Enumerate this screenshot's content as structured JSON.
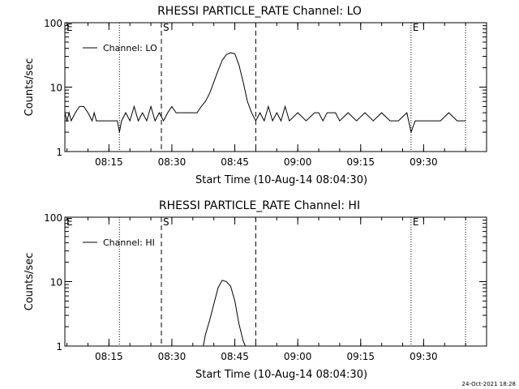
{
  "datestamp": "24-Oct-2021 18:28",
  "chart_data": [
    {
      "type": "line",
      "title": "RHESSI PARTICLE_RATE Channel: LO",
      "xlabel": "Start Time (10-Aug-14 08:04:30)",
      "ylabel": "Counts/sec",
      "yscale": "log",
      "ylim": [
        1,
        100
      ],
      "xlim": [
        "08:04:30",
        "09:45:00"
      ],
      "x_ticks": [
        "08:15",
        "08:30",
        "08:45",
        "09:00",
        "09:15",
        "09:30"
      ],
      "y_ticks": [
        "1",
        "10",
        "100"
      ],
      "legend": {
        "label": "Channel: LO",
        "placement": "top-left"
      },
      "grid": false,
      "markers": [
        {
          "time": "08:04:30",
          "style": "dotted",
          "label": "E"
        },
        {
          "time": "08:17:30",
          "style": "dotted",
          "label": ""
        },
        {
          "time": "08:27:30",
          "style": "dashed",
          "label": "S"
        },
        {
          "time": "08:50:00",
          "style": "dashed",
          "label": ""
        },
        {
          "time": "09:27:00",
          "style": "dotted",
          "label": "E"
        },
        {
          "time": "09:40:00",
          "style": "dotted",
          "label": ""
        }
      ],
      "series": [
        {
          "x": [
            "08:04:30",
            "08:05:00",
            "08:05:30",
            "08:06:00",
            "08:07:00",
            "08:08:00",
            "08:09:00",
            "08:10:00",
            "08:11:00",
            "08:11:30",
            "08:12:00",
            "08:13:00",
            "08:14:00",
            "08:15:00",
            "08:16:00",
            "08:17:00",
            "08:17:30",
            "08:18:00",
            "08:19:00",
            "08:20:00",
            "08:21:00",
            "08:22:00",
            "08:23:00",
            "08:24:00",
            "08:25:00",
            "08:26:00",
            "08:27:00",
            "08:28:00",
            "08:29:00",
            "08:30:00",
            "08:31:00",
            "08:32:00",
            "08:33:00",
            "08:34:00",
            "08:35:00",
            "08:36:00",
            "08:37:00",
            "08:38:00",
            "08:39:00",
            "08:40:00",
            "08:41:00",
            "08:42:00",
            "08:43:00",
            "08:44:00",
            "08:45:00",
            "08:46:00",
            "08:47:00",
            "08:48:00",
            "08:49:00",
            "08:50:00",
            "08:51:00",
            "08:52:00",
            "08:53:00",
            "08:54:00",
            "08:55:00",
            "08:56:00",
            "08:57:00",
            "08:58:00",
            "09:00:00",
            "09:02:00",
            "09:04:00",
            "09:05:00",
            "09:06:00",
            "09:07:00",
            "09:08:00",
            "09:09:00",
            "09:10:00",
            "09:12:00",
            "09:14:00",
            "09:16:00",
            "09:18:00",
            "09:20:00",
            "09:22:00",
            "09:24:00",
            "09:26:00",
            "09:27:00",
            "09:28:00",
            "09:30:00",
            "09:32:00",
            "09:34:00",
            "09:36:00",
            "09:38:00",
            "09:40:00"
          ],
          "values": [
            4,
            3,
            4,
            3,
            4,
            5,
            5,
            4,
            3,
            4,
            3,
            3,
            3,
            3,
            3,
            3,
            2,
            3,
            4,
            3,
            5,
            3,
            4,
            3,
            5,
            3,
            4,
            3,
            4,
            5,
            4,
            4,
            4,
            4,
            4,
            4,
            5,
            6,
            8,
            12,
            18,
            26,
            32,
            34,
            33,
            22,
            12,
            6,
            4,
            3,
            4,
            3,
            5,
            3,
            4,
            3,
            5,
            3,
            4,
            3,
            4,
            4,
            3,
            4,
            4,
            4,
            3,
            4,
            3,
            4,
            3,
            4,
            3,
            3,
            4,
            2,
            3,
            3,
            3,
            3,
            4,
            3,
            3
          ]
        }
      ]
    },
    {
      "type": "line",
      "title": "RHESSI PARTICLE_RATE Channel: HI",
      "xlabel": "Start Time (10-Aug-14 08:04:30)",
      "ylabel": "Counts/sec",
      "yscale": "log",
      "ylim": [
        1,
        100
      ],
      "xlim": [
        "08:04:30",
        "09:45:00"
      ],
      "x_ticks": [
        "08:15",
        "08:30",
        "08:45",
        "09:00",
        "09:15",
        "09:30"
      ],
      "y_ticks": [
        "1",
        "10",
        "100"
      ],
      "legend": {
        "label": "Channel: HI",
        "placement": "top-left"
      },
      "grid": false,
      "markers": [
        {
          "time": "08:04:30",
          "style": "dotted",
          "label": "E"
        },
        {
          "time": "08:17:30",
          "style": "dotted",
          "label": ""
        },
        {
          "time": "08:27:30",
          "style": "dashed",
          "label": "S"
        },
        {
          "time": "08:50:00",
          "style": "dashed",
          "label": ""
        },
        {
          "time": "09:27:00",
          "style": "dotted",
          "label": "E"
        },
        {
          "time": "09:40:00",
          "style": "dotted",
          "label": ""
        }
      ],
      "series": [
        {
          "x": [
            "08:37:30",
            "08:38:00",
            "08:39:00",
            "08:40:00",
            "08:41:00",
            "08:42:00",
            "08:43:00",
            "08:44:00",
            "08:45:00",
            "08:46:00",
            "08:47:00",
            "08:47:30"
          ],
          "values": [
            1,
            1.5,
            2.5,
            4.5,
            8,
            10.5,
            10,
            8.5,
            5,
            2.2,
            1.2,
            1
          ]
        }
      ]
    }
  ]
}
